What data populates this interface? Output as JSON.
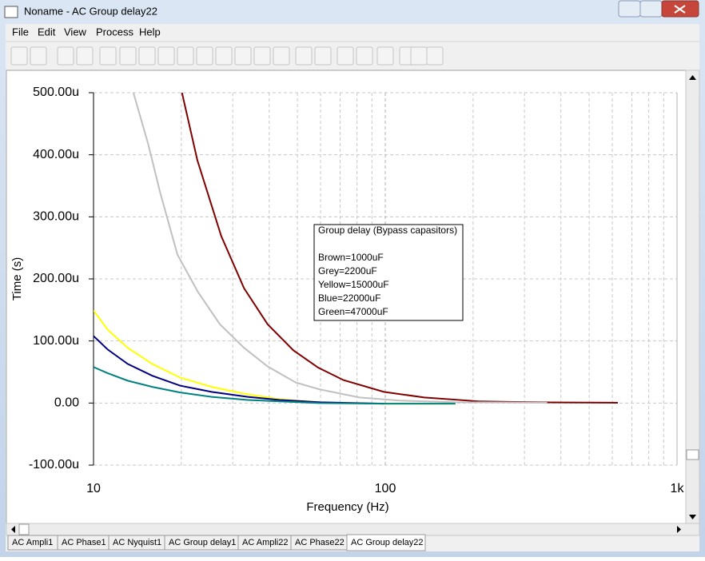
{
  "window": {
    "title": "Noname - AC Group delay22"
  },
  "menu": [
    "File",
    "Edit",
    "View",
    "Process",
    "Help"
  ],
  "tabs": [
    "AC Ampli1",
    "AC Phase1",
    "AC Nyquist1",
    "AC Group delay1",
    "AC Ampli22",
    "AC Phase22",
    "AC Group delay22"
  ],
  "chart_data": {
    "type": "line",
    "xlabel": "Frequency (Hz)",
    "ylabel": "Time (s)",
    "xscale": "log",
    "grid": true,
    "xlim": [
      10,
      1000
    ],
    "xticks": [
      10,
      100,
      {
        "value": 1000,
        "label": "1k"
      }
    ],
    "ylim": [
      -100,
      500
    ],
    "yticks": [
      {
        "value": -100,
        "label": "-100.00u"
      },
      {
        "value": 0,
        "label": "0.00"
      },
      {
        "value": 100,
        "label": "100.00u"
      },
      {
        "value": 200,
        "label": "200.00u"
      },
      {
        "value": 300,
        "label": "300.00u"
      },
      {
        "value": 400,
        "label": "400.00u"
      },
      {
        "value": 500,
        "label": "500.00u"
      }
    ],
    "annotation": {
      "title": "Group delay (Bypass capasitors)",
      "lines": [
        "Brown=1000uF",
        "Grey=2200uF",
        "Yellow=15000uF",
        "Blue=22000uF",
        "Green=47000uF"
      ]
    },
    "series": [
      {
        "color": "#800000",
        "x": [
          20.1,
          22.7,
          27.4,
          32.8,
          39.5,
          48.4,
          58.9,
          71.9,
          98.9,
          136,
          211,
          348,
          627
        ],
        "values": [
          500,
          391,
          269,
          185,
          127,
          85,
          57,
          37,
          18,
          9,
          2.6,
          1,
          0.5
        ]
      },
      {
        "color": "#c0c0c0",
        "x": [
          13.7,
          15.4,
          16.9,
          19.4,
          22.8,
          27.1,
          32.8,
          39.5,
          49.4,
          59.6,
          81.6,
          112,
          174,
          359
        ],
        "values": [
          500,
          417,
          340,
          239,
          179,
          127,
          89,
          59,
          33,
          22,
          9,
          4,
          1.3,
          0.5
        ]
      },
      {
        "color": "#ffff00",
        "x": [
          10,
          11.2,
          13.1,
          15.9,
          19.8,
          25.4,
          33.8,
          43.5,
          59.6,
          92.7,
          174
        ],
        "values": [
          149,
          118,
          89,
          63,
          41,
          26,
          14,
          6,
          1.3,
          -1,
          -1
        ]
      },
      {
        "color": "#000080",
        "x": [
          10,
          11.2,
          13.1,
          15.9,
          19.8,
          25.4,
          33.8,
          43.5,
          59.6,
          98.9
        ],
        "values": [
          108,
          86,
          63,
          44,
          28,
          18,
          10,
          5,
          1.3,
          -1
        ]
      },
      {
        "color": "#008080",
        "x": [
          10,
          11.2,
          13.1,
          15.9,
          19.8,
          25.4,
          33.8,
          43.5,
          59.6,
          98.9,
          174
        ],
        "values": [
          58,
          48,
          36,
          26,
          17,
          10,
          5,
          2.6,
          0,
          -1,
          -1
        ]
      }
    ]
  }
}
